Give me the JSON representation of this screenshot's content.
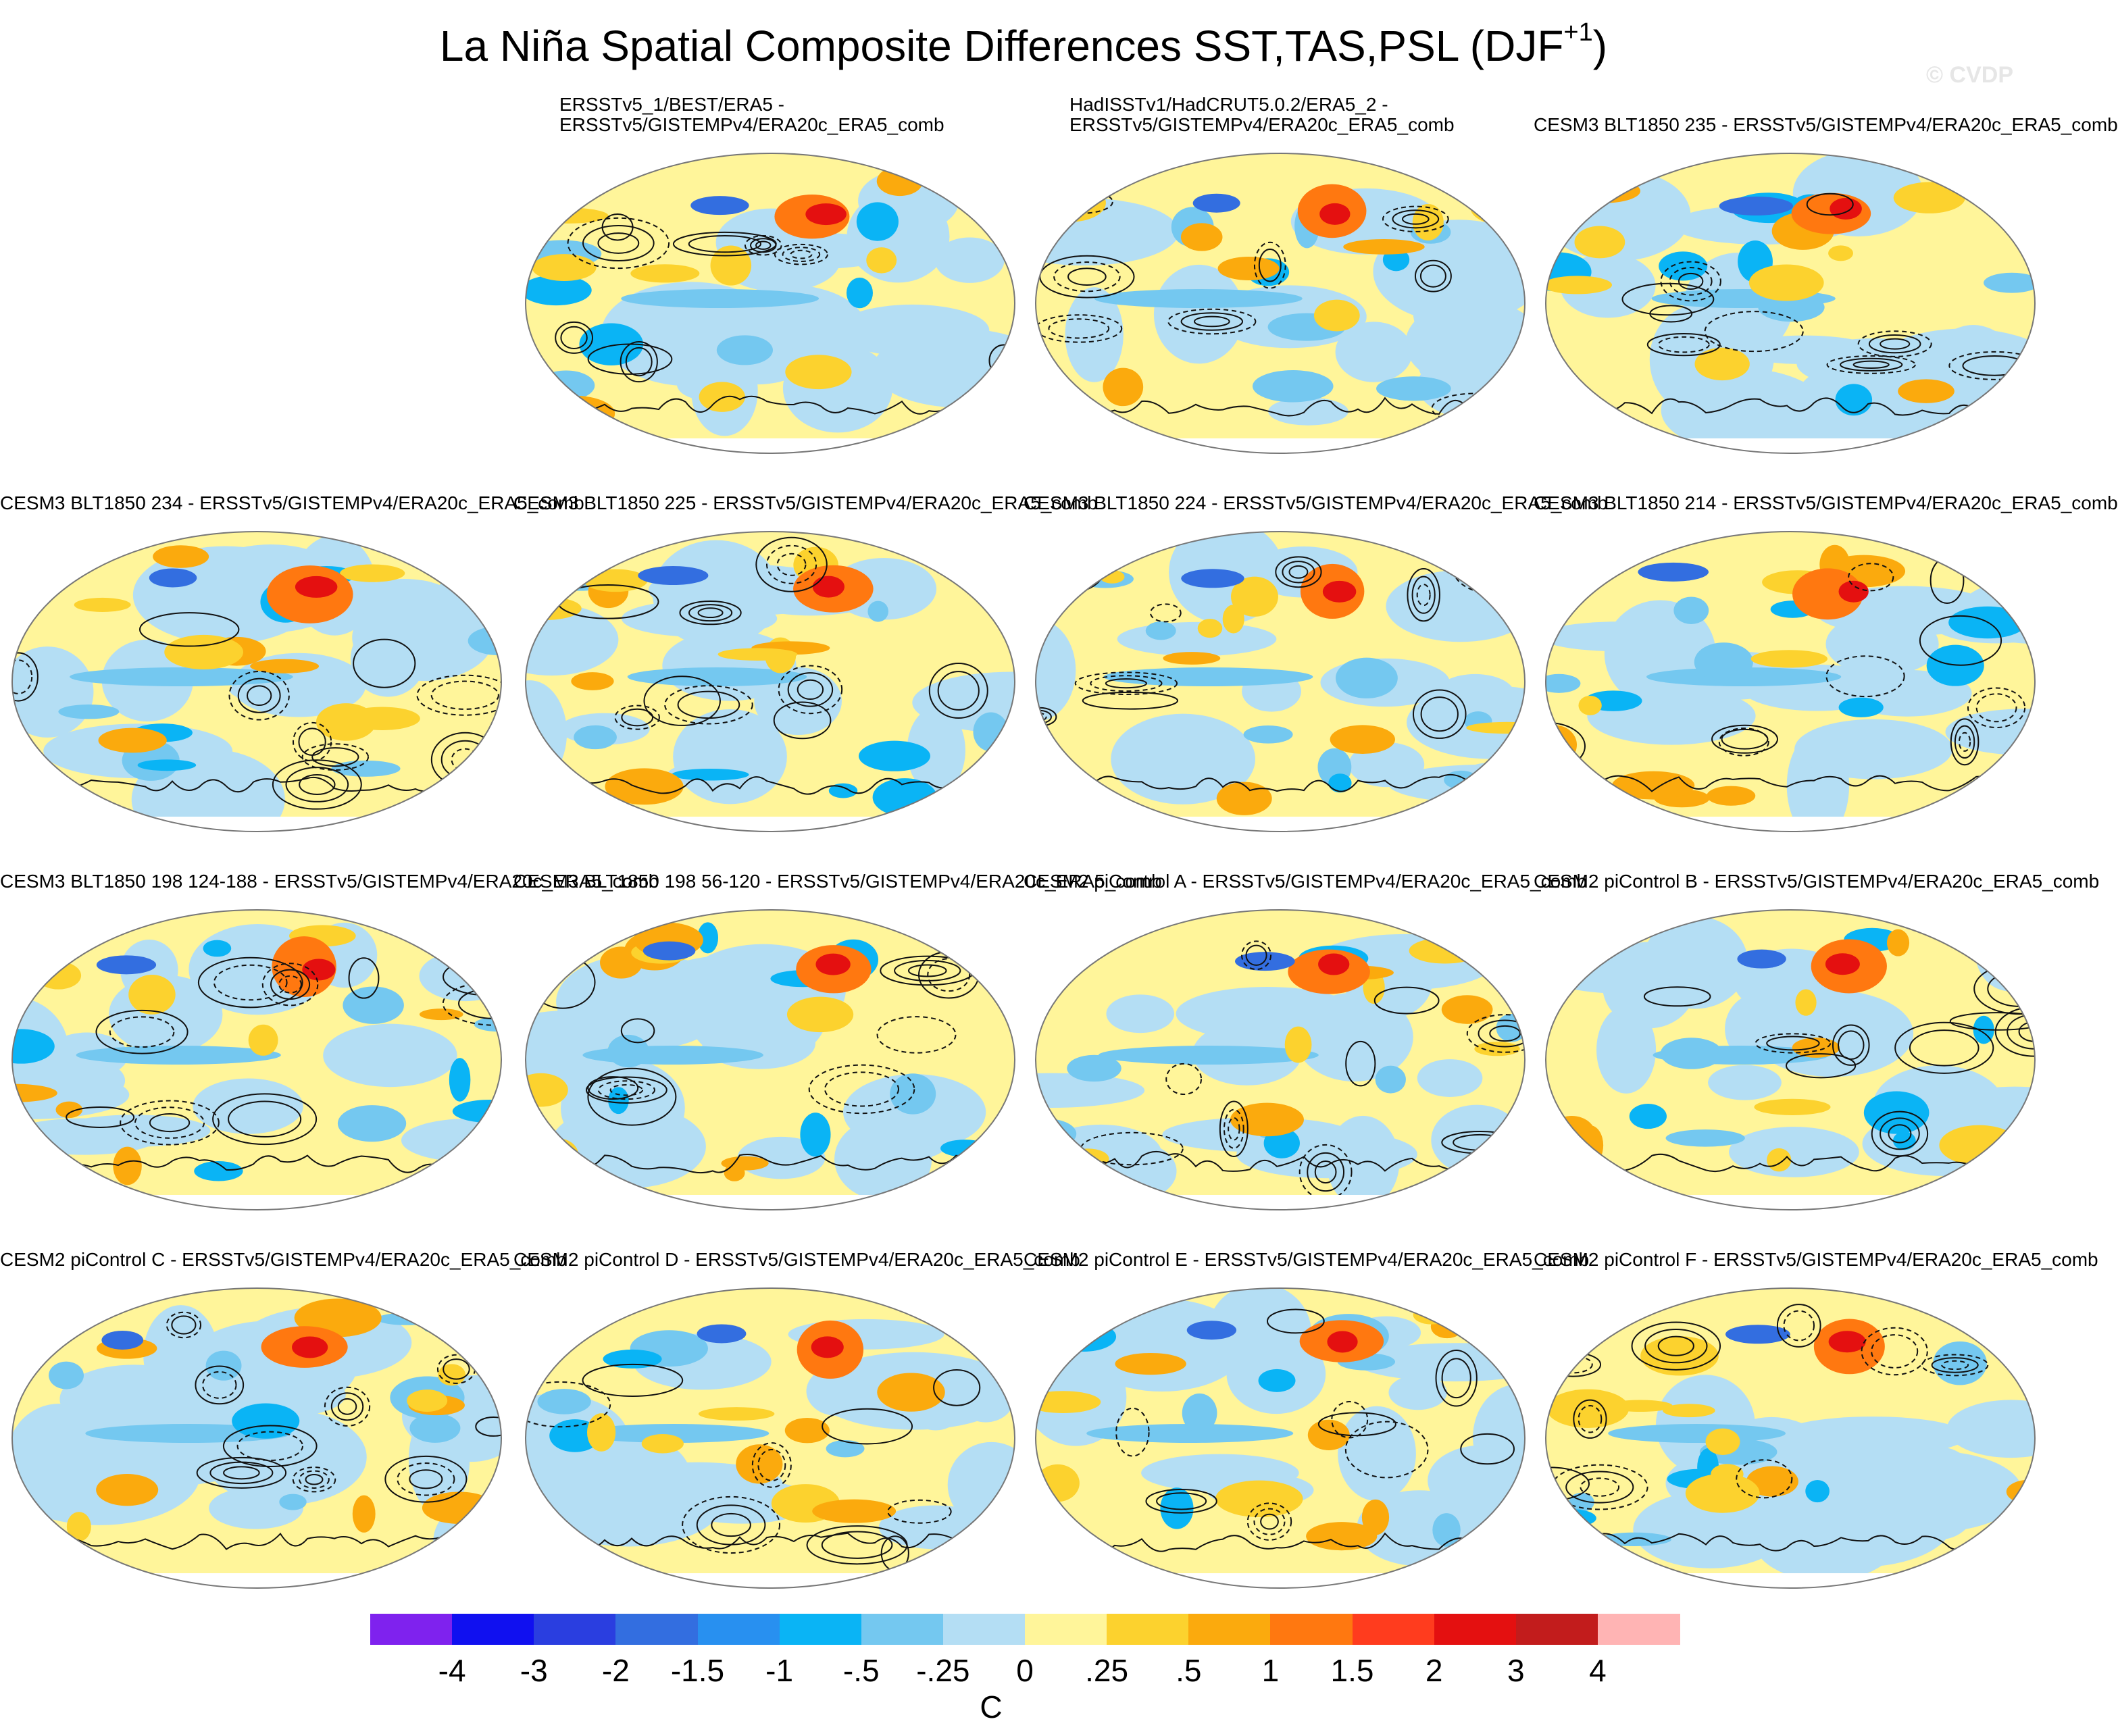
{
  "figure": {
    "title_main": "La Niña Spatial Composite Differences SST,TAS,PSL (DJF",
    "title_superscript": "+1",
    "title_close": ")",
    "watermark": "© CVDP",
    "units": "C"
  },
  "panels": [
    {
      "label": "ERSSTv5_1/BEST/ERA5 -\nERSSTv5/GISTEMPv4/ERA20c_ERA5_comb",
      "seed": 11
    },
    {
      "label": "HadISSTv1/HadCRUT5.0.2/ERA5_2 -\nERSSTv5/GISTEMPv4/ERA20c_ERA5_comb",
      "seed": 23
    },
    {
      "label": "CESM3 BLT1850 235 - ERSSTv5/GISTEMPv4/ERA20c_ERA5_comb",
      "seed": 37
    },
    {
      "label": "CESM3 BLT1850 234 - ERSSTv5/GISTEMPv4/ERA20c_ERA5_comb",
      "seed": 41
    },
    {
      "label": "CESM3 BLT1850 225 - ERSSTv5/GISTEMPv4/ERA20c_ERA5_comb",
      "seed": 53
    },
    {
      "label": "CESM3 BLT1850 224 - ERSSTv5/GISTEMPv4/ERA20c_ERA5_comb",
      "seed": 67
    },
    {
      "label": "CESM3 BLT1850 214 - ERSSTv5/GISTEMPv4/ERA20c_ERA5_comb",
      "seed": 71
    },
    {
      "label": "CESM3 BLT1850 198 124-188 - ERSSTv5/GISTEMPv4/ERA20c_ERA5_comb",
      "seed": 83
    },
    {
      "label": "CESM3 BLT1850 198 56-120 - ERSSTv5/GISTEMPv4/ERA20c_ERA5_comb",
      "seed": 97
    },
    {
      "label": "CESM2 piControl A - ERSSTv5/GISTEMPv4/ERA20c_ERA5_comb",
      "seed": 101
    },
    {
      "label": "CESM2 piControl B - ERSSTv5/GISTEMPv4/ERA20c_ERA5_comb",
      "seed": 113
    },
    {
      "label": "CESM2 piControl C - ERSSTv5/GISTEMPv4/ERA20c_ERA5_comb",
      "seed": 127
    },
    {
      "label": "CESM2 piControl D - ERSSTv5/GISTEMPv4/ERA20c_ERA5_comb",
      "seed": 131
    },
    {
      "label": "CESM2 piControl E - ERSSTv5/GISTEMPv4/ERA20c_ERA5_comb",
      "seed": 149
    },
    {
      "label": "CESM2 piControl F - ERSSTv5/GISTEMPv4/ERA20c_ERA5_comb",
      "seed": 157
    }
  ],
  "colorbar": {
    "colors": [
      "#7f22ee",
      "#1010f0",
      "#2a3ee0",
      "#336ee0",
      "#2890f0",
      "#0ab4f5",
      "#74c8f0",
      "#b4def4",
      "#fff59a",
      "#fcd22e",
      "#fbaa0d",
      "#ff7810",
      "#ff3c1e",
      "#e41010",
      "#c21c1c",
      "#ffb4b4"
    ],
    "labels": [
      "-4",
      "-3",
      "-2",
      "-1.5",
      "-1",
      "-.5",
      "-.25",
      "0",
      ".25",
      ".5",
      "1",
      "1.5",
      "2",
      "3",
      "4"
    ]
  }
}
